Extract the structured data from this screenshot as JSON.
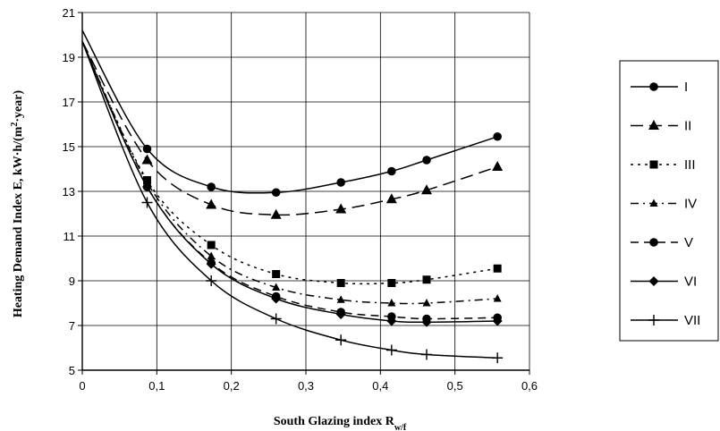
{
  "chart_data": {
    "type": "line",
    "title": "",
    "xlabel": "South Glazing index R",
    "xlabel_subscript": "w/f",
    "ylabel_main": "Heating Demand Index E, kW·h/(m",
    "ylabel_sup": "2",
    "ylabel_tail": "·year)",
    "xlim": [
      0,
      0.6
    ],
    "ylim": [
      5,
      21
    ],
    "x_ticks": [
      0,
      0.1,
      0.2,
      0.3,
      0.4,
      0.5,
      0.6
    ],
    "x_tick_labels": [
      "0",
      "0,1",
      "0,2",
      "0,3",
      "0,4",
      "0,5",
      "0,6"
    ],
    "y_ticks": [
      5,
      7,
      9,
      11,
      13,
      15,
      17,
      19,
      21
    ],
    "y_tick_labels": [
      "5",
      "7",
      "9",
      "11",
      "13",
      "15",
      "17",
      "19",
      "21"
    ],
    "grid": {
      "x": true,
      "y": true
    },
    "legend_position": "right",
    "series": [
      {
        "name": "I",
        "marker": "circle",
        "dash": "solid",
        "x": [
          0,
          0.087,
          0.173,
          0.26,
          0.347,
          0.415,
          0.462,
          0.557
        ],
        "y": [
          20.2,
          14.9,
          13.2,
          12.95,
          13.4,
          13.9,
          14.4,
          15.45
        ]
      },
      {
        "name": "II",
        "marker": "triangle",
        "dash": "longdash",
        "x": [
          0,
          0.087,
          0.173,
          0.26,
          0.347,
          0.415,
          0.462,
          0.557
        ],
        "y": [
          19.7,
          14.4,
          12.4,
          11.95,
          12.2,
          12.65,
          13.05,
          14.1
        ]
      },
      {
        "name": "III",
        "marker": "square",
        "dash": "dotted",
        "x": [
          0,
          0.087,
          0.173,
          0.26,
          0.347,
          0.415,
          0.462,
          0.557
        ],
        "y": [
          19.7,
          13.5,
          10.6,
          9.3,
          8.9,
          8.9,
          9.05,
          9.55
        ]
      },
      {
        "name": "IV",
        "marker": "small-triangle",
        "dash": "dashdot",
        "x": [
          0,
          0.087,
          0.173,
          0.26,
          0.347,
          0.415,
          0.462,
          0.557
        ],
        "y": [
          19.7,
          13.4,
          10.1,
          8.7,
          8.15,
          8.0,
          8.0,
          8.2
        ]
      },
      {
        "name": "V",
        "marker": "circle",
        "dash": "dashed",
        "x": [
          0,
          0.087,
          0.173,
          0.26,
          0.347,
          0.415,
          0.462,
          0.557
        ],
        "y": [
          19.7,
          13.2,
          9.8,
          8.3,
          7.6,
          7.4,
          7.3,
          7.35
        ]
      },
      {
        "name": "VI",
        "marker": "diamond",
        "dash": "solid",
        "x": [
          0,
          0.087,
          0.173,
          0.26,
          0.347,
          0.415,
          0.462,
          0.557
        ],
        "y": [
          19.7,
          13.2,
          9.75,
          8.2,
          7.5,
          7.2,
          7.15,
          7.2
        ]
      },
      {
        "name": "VII",
        "marker": "plus",
        "dash": "solid",
        "x": [
          0,
          0.087,
          0.173,
          0.26,
          0.347,
          0.415,
          0.462,
          0.557
        ],
        "y": [
          19.7,
          12.5,
          9.0,
          7.3,
          6.35,
          5.9,
          5.7,
          5.55
        ]
      }
    ]
  }
}
